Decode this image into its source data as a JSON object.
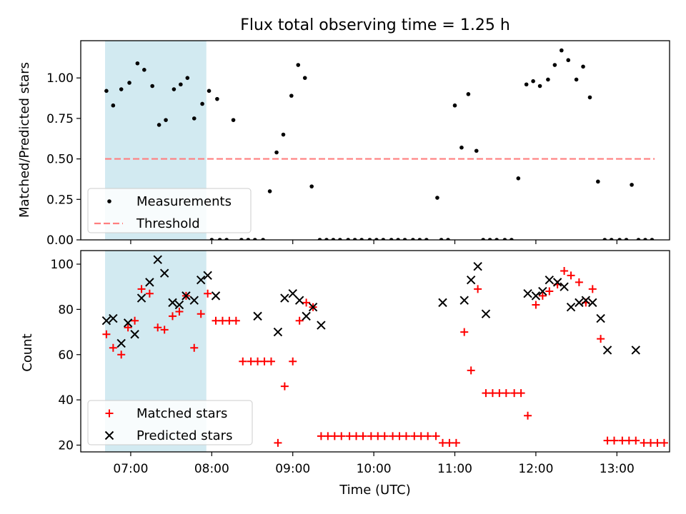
{
  "figure": {
    "title": "Flux total observing time = 1.25 h",
    "xlabel": "Time (UTC)"
  },
  "chart_data": [
    {
      "type": "scatter",
      "panel": "top",
      "ylabel": "Matched/Predicted stars",
      "xlim": [
        "06:23",
        "13:39"
      ],
      "ylim": [
        0,
        1.23
      ],
      "yticks": [
        "0.00",
        "0.25",
        "0.50",
        "0.75",
        "1.00"
      ],
      "yticks_values": [
        0,
        0.25,
        0.5,
        0.75,
        1.0
      ],
      "xticks": [
        "07:00",
        "08:00",
        "09:00",
        "10:00",
        "11:00",
        "12:00",
        "13:00"
      ],
      "shaded_region": {
        "from": "06:41",
        "to": "07:56",
        "color": "#add8e6"
      },
      "legend_location": "lower left",
      "series": [
        {
          "name": "Measurements",
          "marker": "dot",
          "color": "#000000",
          "points": [
            [
              "06:42",
              0.92
            ],
            [
              "06:47",
              0.83
            ],
            [
              "06:53",
              0.93
            ],
            [
              "06:59",
              0.97
            ],
            [
              "07:05",
              1.09
            ],
            [
              "07:10",
              1.05
            ],
            [
              "07:16",
              0.95
            ],
            [
              "07:21",
              0.71
            ],
            [
              "07:26",
              0.74
            ],
            [
              "07:32",
              0.93
            ],
            [
              "07:37",
              0.96
            ],
            [
              "07:42",
              1.0
            ],
            [
              "07:47",
              0.75
            ],
            [
              "07:53",
              0.84
            ],
            [
              "07:58",
              0.92
            ],
            [
              "08:04",
              0.87
            ],
            [
              "08:00",
              0.0
            ],
            [
              "08:06",
              0.0
            ],
            [
              "08:11",
              0.0
            ],
            [
              "08:16",
              0.74
            ],
            [
              "08:22",
              0.0
            ],
            [
              "08:27",
              0.0
            ],
            [
              "08:32",
              0.0
            ],
            [
              "08:38",
              0.0
            ],
            [
              "08:43",
              0.3
            ],
            [
              "08:48",
              0.54
            ],
            [
              "08:53",
              0.65
            ],
            [
              "08:59",
              0.89
            ],
            [
              "09:04",
              1.08
            ],
            [
              "09:09",
              1.0
            ],
            [
              "09:14",
              0.33
            ],
            [
              "09:20",
              0.0
            ],
            [
              "09:25",
              0.0
            ],
            [
              "09:30",
              0.0
            ],
            [
              "09:35",
              0.0
            ],
            [
              "09:41",
              0.0
            ],
            [
              "09:46",
              0.0
            ],
            [
              "09:51",
              0.0
            ],
            [
              "09:57",
              0.0
            ],
            [
              "10:02",
              0.0
            ],
            [
              "10:07",
              0.0
            ],
            [
              "10:13",
              0.0
            ],
            [
              "10:18",
              0.0
            ],
            [
              "10:23",
              0.0
            ],
            [
              "10:29",
              0.0
            ],
            [
              "10:34",
              0.0
            ],
            [
              "10:39",
              0.0
            ],
            [
              "10:47",
              0.26
            ],
            [
              "10:50",
              0.0
            ],
            [
              "10:55",
              0.0
            ],
            [
              "11:00",
              0.83
            ],
            [
              "11:05",
              0.57
            ],
            [
              "11:10",
              0.9
            ],
            [
              "11:16",
              0.55
            ],
            [
              "11:21",
              0.0
            ],
            [
              "11:26",
              0.0
            ],
            [
              "11:31",
              0.0
            ],
            [
              "11:37",
              0.0
            ],
            [
              "11:42",
              0.0
            ],
            [
              "11:47",
              0.38
            ],
            [
              "11:53",
              0.96
            ],
            [
              "11:58",
              0.98
            ],
            [
              "12:03",
              0.95
            ],
            [
              "12:09",
              0.99
            ],
            [
              "12:14",
              1.08
            ],
            [
              "12:19",
              1.17
            ],
            [
              "12:24",
              1.11
            ],
            [
              "12:30",
              0.99
            ],
            [
              "12:35",
              1.07
            ],
            [
              "12:40",
              0.88
            ],
            [
              "12:46",
              0.36
            ],
            [
              "12:51",
              0.0
            ],
            [
              "12:56",
              0.0
            ],
            [
              "13:02",
              0.0
            ],
            [
              "13:07",
              0.0
            ],
            [
              "13:11",
              0.34
            ],
            [
              "13:16",
              0.0
            ],
            [
              "13:21",
              0.0
            ],
            [
              "13:26",
              0.0
            ]
          ]
        },
        {
          "name": "Threshold",
          "marker": "dashed-line",
          "color": "#ff7f7f",
          "points": [
            [
              "06:41",
              0.5
            ],
            [
              "13:28",
              0.5
            ]
          ]
        }
      ]
    },
    {
      "type": "scatter",
      "panel": "bottom",
      "ylabel": "Count",
      "xlabel": "Time (UTC)",
      "xlim": [
        "06:23",
        "13:39"
      ],
      "ylim": [
        17,
        106
      ],
      "yticks": [
        "20",
        "40",
        "60",
        "80",
        "100"
      ],
      "yticks_values": [
        20,
        40,
        60,
        80,
        100
      ],
      "xticks": [
        "07:00",
        "08:00",
        "09:00",
        "10:00",
        "11:00",
        "12:00",
        "13:00"
      ],
      "shaded_region": {
        "from": "06:41",
        "to": "07:56",
        "color": "#add8e6"
      },
      "legend_location": "lower left",
      "series": [
        {
          "name": "Matched stars",
          "marker": "plus",
          "color": "#ff0000",
          "points": [
            [
              "06:42",
              69
            ],
            [
              "06:47",
              63
            ],
            [
              "06:53",
              60
            ],
            [
              "06:58",
              72
            ],
            [
              "07:03",
              75
            ],
            [
              "07:08",
              89
            ],
            [
              "07:14",
              87
            ],
            [
              "07:20",
              72
            ],
            [
              "07:25",
              71
            ],
            [
              "07:31",
              77
            ],
            [
              "07:36",
              79
            ],
            [
              "07:41",
              86
            ],
            [
              "07:47",
              63
            ],
            [
              "07:52",
              78
            ],
            [
              "07:57",
              87
            ],
            [
              "08:03",
              75
            ],
            [
              "08:08",
              75
            ],
            [
              "08:13",
              75
            ],
            [
              "08:18",
              75
            ],
            [
              "08:23",
              57
            ],
            [
              "08:29",
              57
            ],
            [
              "08:34",
              57
            ],
            [
              "08:39",
              57
            ],
            [
              "08:44",
              57
            ],
            [
              "08:49",
              21
            ],
            [
              "08:54",
              46
            ],
            [
              "09:00",
              57
            ],
            [
              "09:05",
              75
            ],
            [
              "09:10",
              83
            ],
            [
              "09:15",
              81
            ],
            [
              "09:21",
              24
            ],
            [
              "09:26",
              24
            ],
            [
              "09:31",
              24
            ],
            [
              "09:36",
              24
            ],
            [
              "09:42",
              24
            ],
            [
              "09:47",
              24
            ],
            [
              "09:52",
              24
            ],
            [
              "09:58",
              24
            ],
            [
              "10:03",
              24
            ],
            [
              "10:08",
              24
            ],
            [
              "10:14",
              24
            ],
            [
              "10:19",
              24
            ],
            [
              "10:24",
              24
            ],
            [
              "10:30",
              24
            ],
            [
              "10:35",
              24
            ],
            [
              "10:40",
              24
            ],
            [
              "10:46",
              24
            ],
            [
              "10:51",
              21
            ],
            [
              "10:56",
              21
            ],
            [
              "11:01",
              21
            ],
            [
              "11:07",
              70
            ],
            [
              "11:12",
              53
            ],
            [
              "11:17",
              89
            ],
            [
              "11:23",
              43
            ],
            [
              "11:28",
              43
            ],
            [
              "11:33",
              43
            ],
            [
              "11:38",
              43
            ],
            [
              "11:44",
              43
            ],
            [
              "11:49",
              43
            ],
            [
              "11:54",
              33
            ],
            [
              "12:00",
              82
            ],
            [
              "12:05",
              86
            ],
            [
              "12:10",
              88
            ],
            [
              "12:16",
              91
            ],
            [
              "12:21",
              97
            ],
            [
              "12:26",
              95
            ],
            [
              "12:32",
              92
            ],
            [
              "12:37",
              83
            ],
            [
              "12:42",
              89
            ],
            [
              "12:48",
              67
            ],
            [
              "12:53",
              22
            ],
            [
              "12:58",
              22
            ],
            [
              "13:04",
              22
            ],
            [
              "13:09",
              22
            ],
            [
              "13:14",
              22
            ],
            [
              "13:20",
              21
            ],
            [
              "13:25",
              21
            ],
            [
              "13:30",
              21
            ],
            [
              "13:35",
              21
            ]
          ]
        },
        {
          "name": "Predicted stars",
          "marker": "x",
          "color": "#000000",
          "points": [
            [
              "06:42",
              75
            ],
            [
              "06:47",
              76
            ],
            [
              "06:53",
              65
            ],
            [
              "06:58",
              74
            ],
            [
              "07:03",
              69
            ],
            [
              "07:08",
              85
            ],
            [
              "07:14",
              92
            ],
            [
              "07:20",
              102
            ],
            [
              "07:25",
              96
            ],
            [
              "07:31",
              83
            ],
            [
              "07:36",
              82
            ],
            [
              "07:41",
              86
            ],
            [
              "07:47",
              84
            ],
            [
              "07:52",
              93
            ],
            [
              "07:57",
              95
            ],
            [
              "08:03",
              86
            ],
            [
              "08:34",
              77
            ],
            [
              "08:49",
              70
            ],
            [
              "08:54",
              85
            ],
            [
              "09:00",
              87
            ],
            [
              "09:05",
              84
            ],
            [
              "09:10",
              77
            ],
            [
              "09:15",
              81
            ],
            [
              "09:21",
              73
            ],
            [
              "10:51",
              83
            ],
            [
              "11:07",
              84
            ],
            [
              "11:12",
              93
            ],
            [
              "11:17",
              99
            ],
            [
              "11:23",
              78
            ],
            [
              "11:54",
              87
            ],
            [
              "12:00",
              86
            ],
            [
              "12:05",
              88
            ],
            [
              "12:10",
              93
            ],
            [
              "12:16",
              92
            ],
            [
              "12:21",
              90
            ],
            [
              "12:26",
              81
            ],
            [
              "12:32",
              83
            ],
            [
              "12:37",
              84
            ],
            [
              "12:42",
              83
            ],
            [
              "12:48",
              76
            ],
            [
              "12:53",
              62
            ],
            [
              "13:14",
              62
            ]
          ]
        }
      ]
    }
  ]
}
